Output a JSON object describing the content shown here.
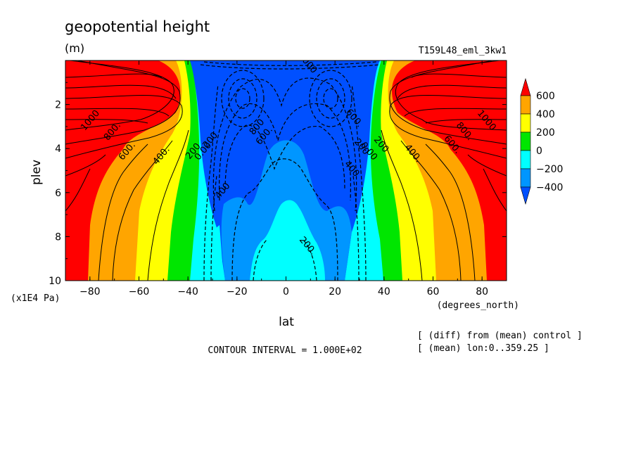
{
  "chart_data": {
    "type": "contour",
    "title": "geopotential height",
    "units": "(m)",
    "experiment": "T159L48_eml_3kw1",
    "xlabel": "lat",
    "x_units": "(degrees_north)",
    "ylabel": "plev",
    "y_units": "(x1E4 Pa)",
    "x_ticks": [
      -80,
      -60,
      -40,
      -20,
      0,
      20,
      40,
      60,
      80
    ],
    "x_tick_labels": [
      "−80",
      "−60",
      "−40",
      "−20",
      "0",
      "20",
      "40",
      "60",
      "80"
    ],
    "y_ticks": [
      2,
      4,
      6,
      8,
      10
    ],
    "y_tick_labels": [
      "2",
      "4",
      "6",
      "8",
      "10"
    ],
    "xlim": [
      -90,
      90
    ],
    "ylim": [
      0,
      10
    ],
    "y_inverted": true,
    "contour_interval_text": "CONTOUR INTERVAL = 1.000E+02",
    "notes": [
      "[ (diff) from (mean) control ]",
      "[ (mean) lon:0..359.25 ]"
    ],
    "colorbar": {
      "labels": [
        "600",
        "400",
        "200",
        "0",
        "−200",
        "−400"
      ],
      "levels": [
        600,
        400,
        200,
        0,
        -200,
        -400
      ],
      "colors": [
        "#ff0000",
        "#ffa500",
        "#ffff00",
        "#00e600",
        "#00ffff",
        "#0096ff",
        "#0050ff"
      ]
    },
    "contour_labels": [
      {
        "text": "1000",
        "x": -79,
        "y": 2.8
      },
      {
        "text": "800.",
        "x": -70,
        "y": 3.3
      },
      {
        "text": "600.",
        "x": -64,
        "y": 4.2
      },
      {
        "text": "400.",
        "x": -50,
        "y": 4.4
      },
      {
        "text": "200",
        "x": -37,
        "y": 4.2
      },
      {
        "text": "0.00",
        "x": -33,
        "y": 4.2
      },
      {
        "text": "200",
        "x": -30,
        "y": 3.7
      },
      {
        "text": "400",
        "x": -25,
        "y": 6.0
      },
      {
        "text": "800",
        "x": -11,
        "y": 3.1
      },
      {
        "text": "600.",
        "x": -8,
        "y": 3.5
      },
      {
        "text": "1000",
        "x": 8,
        "y": 0.2
      },
      {
        "text": "600.",
        "x": 27,
        "y": 2.7
      },
      {
        "text": "400",
        "x": 26,
        "y": 5.0
      },
      {
        "text": "200",
        "x": 30,
        "y": 4.0
      },
      {
        "text": "0.00",
        "x": 33,
        "y": 4.2
      },
      {
        "text": "200",
        "x": 38,
        "y": 3.9
      },
      {
        "text": "400.",
        "x": 51,
        "y": 4.3
      },
      {
        "text": "600.",
        "x": 67,
        "y": 3.9
      },
      {
        "text": "800.",
        "x": 72,
        "y": 3.3
      },
      {
        "text": "1000",
        "x": 81,
        "y": 2.8
      },
      {
        "text": "200.",
        "x": 8,
        "y": 8.5
      }
    ]
  }
}
